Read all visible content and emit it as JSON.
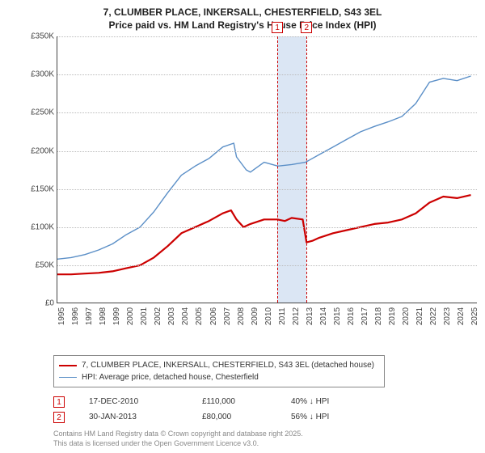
{
  "title": {
    "line1": "7, CLUMBER PLACE, INKERSALL, CHESTERFIELD, S43 3EL",
    "line2": "Price paid vs. HM Land Registry's House Price Index (HPI)"
  },
  "chart": {
    "type": "line",
    "background_color": "#ffffff",
    "grid_color": "#bbbbbb",
    "axis_color": "#444444",
    "label_fontsize": 10,
    "x": {
      "min": 1995,
      "max": 2025.5,
      "ticks": [
        1995,
        1996,
        1997,
        1998,
        1999,
        2000,
        2001,
        2002,
        2003,
        2004,
        2005,
        2006,
        2007,
        2008,
        2009,
        2010,
        2011,
        2012,
        2013,
        2014,
        2015,
        2016,
        2017,
        2018,
        2019,
        2020,
        2021,
        2022,
        2023,
        2024,
        2025
      ]
    },
    "y": {
      "min": 0,
      "max": 350000,
      "ticks": [
        0,
        50000,
        100000,
        150000,
        200000,
        250000,
        300000,
        350000
      ],
      "labels": [
        "£0",
        "£50K",
        "£100K",
        "£150K",
        "£200K",
        "£250K",
        "£300K",
        "£350K"
      ]
    },
    "band": {
      "from": 2010.96,
      "to": 2013.08,
      "color": "#dbe6f4"
    },
    "markers": [
      {
        "idx": "1",
        "x": 2010.96
      },
      {
        "idx": "2",
        "x": 2013.08
      }
    ],
    "series": [
      {
        "name": "property",
        "color": "#cc0000",
        "width": 2.2,
        "points": [
          [
            1995,
            38000
          ],
          [
            1996,
            38000
          ],
          [
            1997,
            39000
          ],
          [
            1998,
            40000
          ],
          [
            1999,
            42000
          ],
          [
            2000,
            46000
          ],
          [
            2001,
            50000
          ],
          [
            2002,
            60000
          ],
          [
            2003,
            75000
          ],
          [
            2004,
            92000
          ],
          [
            2005,
            100000
          ],
          [
            2006,
            108000
          ],
          [
            2007,
            118000
          ],
          [
            2007.6,
            122000
          ],
          [
            2008,
            110000
          ],
          [
            2008.5,
            100000
          ],
          [
            2009,
            104000
          ],
          [
            2010,
            110000
          ],
          [
            2010.96,
            110000
          ],
          [
            2011.5,
            108000
          ],
          [
            2012,
            112000
          ],
          [
            2012.8,
            110000
          ],
          [
            2013.08,
            80000
          ],
          [
            2013.5,
            82000
          ],
          [
            2014,
            86000
          ],
          [
            2015,
            92000
          ],
          [
            2016,
            96000
          ],
          [
            2017,
            100000
          ],
          [
            2018,
            104000
          ],
          [
            2019,
            106000
          ],
          [
            2020,
            110000
          ],
          [
            2021,
            118000
          ],
          [
            2022,
            132000
          ],
          [
            2023,
            140000
          ],
          [
            2024,
            138000
          ],
          [
            2025,
            142000
          ]
        ]
      },
      {
        "name": "hpi",
        "color": "#5b8fc7",
        "width": 1.4,
        "points": [
          [
            1995,
            58000
          ],
          [
            1996,
            60000
          ],
          [
            1997,
            64000
          ],
          [
            1998,
            70000
          ],
          [
            1999,
            78000
          ],
          [
            2000,
            90000
          ],
          [
            2001,
            100000
          ],
          [
            2002,
            120000
          ],
          [
            2003,
            145000
          ],
          [
            2004,
            168000
          ],
          [
            2005,
            180000
          ],
          [
            2006,
            190000
          ],
          [
            2007,
            205000
          ],
          [
            2007.8,
            210000
          ],
          [
            2008,
            192000
          ],
          [
            2008.7,
            175000
          ],
          [
            2009,
            172000
          ],
          [
            2010,
            185000
          ],
          [
            2011,
            180000
          ],
          [
            2012,
            182000
          ],
          [
            2013,
            185000
          ],
          [
            2014,
            195000
          ],
          [
            2015,
            205000
          ],
          [
            2016,
            215000
          ],
          [
            2017,
            225000
          ],
          [
            2018,
            232000
          ],
          [
            2019,
            238000
          ],
          [
            2020,
            245000
          ],
          [
            2021,
            262000
          ],
          [
            2022,
            290000
          ],
          [
            2023,
            295000
          ],
          [
            2024,
            292000
          ],
          [
            2025,
            298000
          ]
        ]
      }
    ]
  },
  "legend": {
    "item1": "7, CLUMBER PLACE, INKERSALL, CHESTERFIELD, S43 3EL (detached house)",
    "item2": "HPI: Average price, detached house, Chesterfield"
  },
  "transactions": [
    {
      "idx": "1",
      "date": "17-DEC-2010",
      "price": "£110,000",
      "delta": "40% ↓ HPI"
    },
    {
      "idx": "2",
      "date": "30-JAN-2013",
      "price": "£80,000",
      "delta": "56% ↓ HPI"
    }
  ],
  "footer": {
    "line1": "Contains HM Land Registry data © Crown copyright and database right 2025.",
    "line2": "This data is licensed under the Open Government Licence v3.0."
  }
}
